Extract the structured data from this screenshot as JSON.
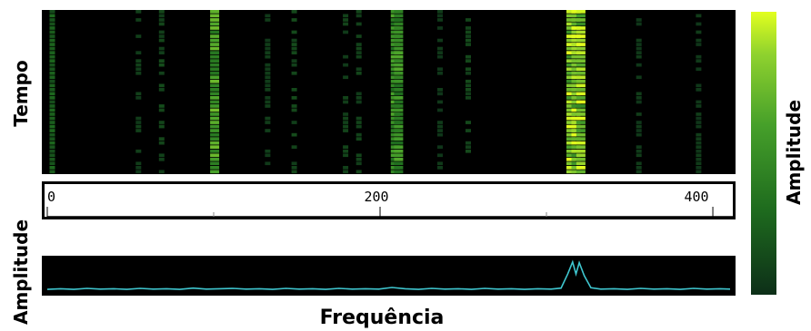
{
  "chart_data": [
    {
      "type": "heatmap",
      "ylabel": "Tempo",
      "colorbar_label": "Amplitude",
      "colormap": [
        "#0d2f18",
        "#1e6b1e",
        "#46a02a",
        "#8fd22e",
        "#e2ff1e"
      ],
      "background": "#000000",
      "x_range": [
        0,
        412
      ],
      "rows": 40,
      "bands": [
        {
          "x": 3,
          "intensity": 0.25
        },
        {
          "x": 55,
          "intensity": 0.08
        },
        {
          "x": 69,
          "intensity": 0.12
        },
        {
          "x": 101,
          "intensity": 0.65
        },
        {
          "x": 133,
          "intensity": 0.07
        },
        {
          "x": 149,
          "intensity": 0.12
        },
        {
          "x": 180,
          "intensity": 0.1
        },
        {
          "x": 188,
          "intensity": 0.1
        },
        {
          "x": 210,
          "intensity": 0.55
        },
        {
          "x": 212,
          "intensity": 0.55
        },
        {
          "x": 237,
          "intensity": 0.05
        },
        {
          "x": 254,
          "intensity": 0.12
        },
        {
          "x": 316,
          "intensity": 0.85
        },
        {
          "x": 319,
          "intensity": 0.9
        },
        {
          "x": 322,
          "intensity": 0.85
        },
        {
          "x": 357,
          "intensity": 0.06
        },
        {
          "x": 393,
          "intensity": 0.06
        }
      ]
    },
    {
      "type": "line",
      "xlabel": "Frequência",
      "ylabel": "Amplitude",
      "line_color": "#3fc6cf",
      "background": "#000000",
      "xlim": [
        0,
        412
      ],
      "ylim": [
        0,
        1
      ],
      "xticks": [
        0,
        200,
        400
      ],
      "x": [
        0,
        8,
        16,
        24,
        32,
        40,
        48,
        56,
        64,
        72,
        80,
        88,
        96,
        104,
        112,
        120,
        128,
        136,
        144,
        152,
        160,
        168,
        176,
        184,
        192,
        200,
        208,
        216,
        224,
        232,
        240,
        248,
        256,
        264,
        272,
        280,
        288,
        296,
        304,
        310,
        314,
        317,
        319,
        321,
        324,
        328,
        334,
        342,
        350,
        358,
        366,
        374,
        382,
        390,
        398,
        406,
        412
      ],
      "y": [
        0.08,
        0.1,
        0.08,
        0.11,
        0.09,
        0.1,
        0.08,
        0.11,
        0.09,
        0.1,
        0.08,
        0.12,
        0.09,
        0.1,
        0.11,
        0.09,
        0.1,
        0.08,
        0.11,
        0.09,
        0.1,
        0.08,
        0.11,
        0.09,
        0.1,
        0.09,
        0.14,
        0.1,
        0.08,
        0.11,
        0.09,
        0.1,
        0.08,
        0.11,
        0.09,
        0.1,
        0.08,
        0.1,
        0.09,
        0.12,
        0.55,
        0.92,
        0.55,
        0.9,
        0.5,
        0.13,
        0.09,
        0.1,
        0.08,
        0.11,
        0.09,
        0.1,
        0.08,
        0.11,
        0.09,
        0.1,
        0.09
      ]
    }
  ]
}
